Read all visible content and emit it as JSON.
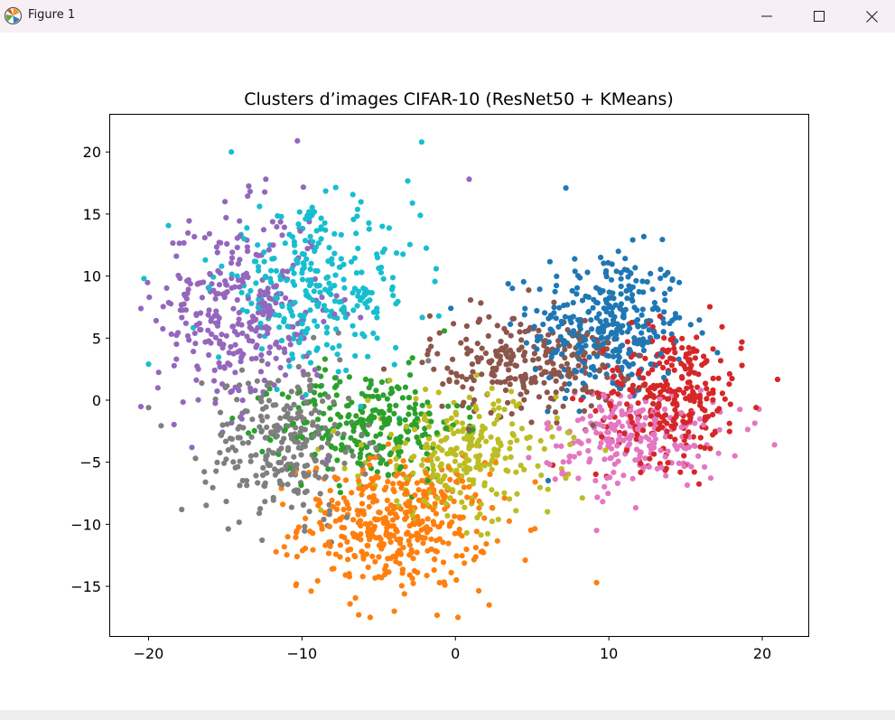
{
  "window": {
    "title": "Figure 1",
    "icons": [
      "matplotlib-icon",
      "minimize-icon",
      "maximize-icon",
      "close-icon"
    ]
  },
  "chart_data": {
    "type": "scatter",
    "title": "Clusters d’images CIFAR-10 (ResNet50 + KMeans)",
    "xlabel": "",
    "ylabel": "",
    "xlim": [
      -22.5,
      23.0
    ],
    "ylim": [
      -19.0,
      23.0
    ],
    "xticks": [
      -20,
      -10,
      0,
      10,
      20
    ],
    "xtick_labels": [
      "−20",
      "−10",
      "0",
      "10",
      "20"
    ],
    "yticks": [
      -15,
      -10,
      -5,
      0,
      5,
      10,
      15,
      20
    ],
    "ytick_labels": [
      "−15",
      "−10",
      "−5",
      "0",
      "5",
      "10",
      "15",
      "20"
    ],
    "grid": false,
    "legend": "none",
    "clusters": [
      {
        "color": "#1f77b4",
        "center": [
          10.0,
          6.0
        ],
        "spread": [
          3.0,
          3.5
        ],
        "count": 340
      },
      {
        "color": "#ff7f0e",
        "center": [
          -4.0,
          -10.0
        ],
        "spread": [
          3.6,
          3.0
        ],
        "count": 420
      },
      {
        "color": "#2ca02c",
        "center": [
          -5.5,
          -2.0
        ],
        "spread": [
          3.4,
          2.6
        ],
        "count": 260
      },
      {
        "color": "#d62728",
        "center": [
          14.0,
          0.5
        ],
        "spread": [
          2.8,
          3.2
        ],
        "count": 300
      },
      {
        "color": "#9467bd",
        "center": [
          -14.0,
          7.0
        ],
        "spread": [
          3.2,
          4.8
        ],
        "count": 330
      },
      {
        "color": "#8c564b",
        "center": [
          4.5,
          3.0
        ],
        "spread": [
          3.6,
          2.4
        ],
        "count": 250
      },
      {
        "color": "#e377c2",
        "center": [
          11.5,
          -3.0
        ],
        "spread": [
          3.4,
          2.3
        ],
        "count": 230
      },
      {
        "color": "#7f7f7f",
        "center": [
          -11.0,
          -3.5
        ],
        "spread": [
          3.0,
          3.6
        ],
        "count": 280
      },
      {
        "color": "#bcbd22",
        "center": [
          0.5,
          -4.5
        ],
        "spread": [
          3.6,
          3.0
        ],
        "count": 270
      },
      {
        "color": "#17becf",
        "center": [
          -9.0,
          9.0
        ],
        "spread": [
          3.8,
          3.6
        ],
        "count": 290
      }
    ],
    "outliers": [
      {
        "color": "#17becf",
        "x": -20.3,
        "y": 9.8
      },
      {
        "color": "#17becf",
        "x": -20.0,
        "y": 2.9
      },
      {
        "color": "#7f7f7f",
        "x": -20.0,
        "y": -0.6
      },
      {
        "color": "#17becf",
        "x": -2.2,
        "y": 20.8
      },
      {
        "color": "#9467bd",
        "x": -10.3,
        "y": 20.9
      },
      {
        "color": "#17becf",
        "x": -14.6,
        "y": 20.0
      },
      {
        "color": "#9467bd",
        "x": 0.9,
        "y": 17.8
      },
      {
        "color": "#e377c2",
        "x": 20.8,
        "y": -3.6
      },
      {
        "color": "#d62728",
        "x": 19.6,
        "y": -0.6
      },
      {
        "color": "#ff7f0e",
        "x": 9.2,
        "y": -14.7
      },
      {
        "color": "#e377c2",
        "x": 9.2,
        "y": -10.5
      },
      {
        "color": "#ff7f0e",
        "x": 2.2,
        "y": -16.5
      },
      {
        "color": "#ff7f0e",
        "x": -6.3,
        "y": -17.3
      },
      {
        "color": "#1f77b4",
        "x": 7.2,
        "y": 17.1
      }
    ]
  }
}
